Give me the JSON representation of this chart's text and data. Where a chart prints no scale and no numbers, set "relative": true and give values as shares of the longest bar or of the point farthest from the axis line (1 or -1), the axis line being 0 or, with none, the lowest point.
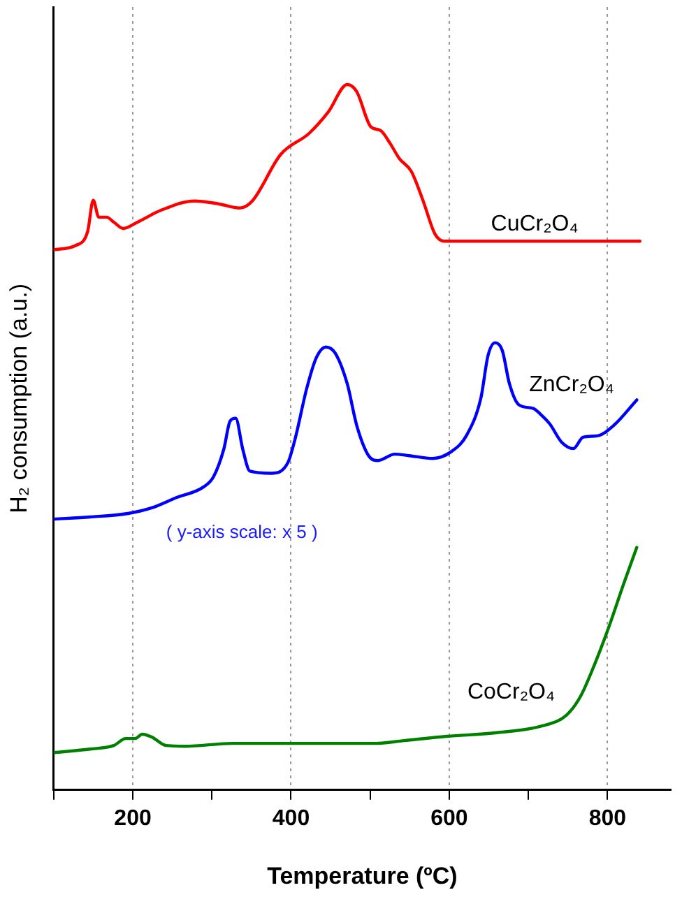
{
  "chart_data": {
    "type": "line",
    "relative": true,
    "xlabel": "Temperature (ºC)",
    "ylabel": "H₂ consumption (a.u.)",
    "xlim": [
      100,
      880
    ],
    "xticks": [
      {
        "value": 100,
        "label": null
      },
      200,
      {
        "value": 300,
        "label": null
      },
      400,
      {
        "value": 500,
        "label": null
      },
      600,
      {
        "value": 700,
        "label": null
      },
      800
    ],
    "grid": "x",
    "legend": false,
    "marker": "none",
    "line_style": "solid",
    "tick_labels": "x",
    "annotations": [
      "( y-axis scale: x 5 )"
    ],
    "series": [
      {
        "name": "CuCr₂O₄",
        "color": "#ff0000",
        "x": [
          100,
          128,
          143,
          150,
          157,
          167,
          176,
          188,
          206,
          236,
          278,
          308,
          335,
          351,
          387,
          423,
          447,
          471,
          483,
          501,
          513,
          525,
          537,
          552,
          567,
          582,
          594,
          628,
          841
        ],
        "values": [
          0.766,
          0.772,
          0.792,
          0.836,
          0.812,
          0.812,
          0.805,
          0.796,
          0.805,
          0.822,
          0.835,
          0.831,
          0.825,
          0.835,
          0.901,
          0.931,
          0.961,
          1.0,
          0.99,
          0.94,
          0.935,
          0.917,
          0.895,
          0.877,
          0.835,
          0.788,
          0.778,
          0.778,
          0.778
        ]
      },
      {
        "name": "ZnCr₂O₄",
        "color": "#0000ff",
        "x": [
          100,
          146,
          194,
          224,
          254,
          290,
          302,
          315,
          323,
          330,
          339,
          348,
          375,
          396,
          405,
          420,
          432,
          444,
          456,
          471,
          483,
          498,
          510,
          531,
          549,
          579,
          603,
          622,
          640,
          649,
          658,
          667,
          676,
          688,
          706,
          715,
          727,
          742,
          757,
          769,
          787,
          808,
          837
        ],
        "values": [
          0.384,
          0.387,
          0.392,
          0.4,
          0.414,
          0.43,
          0.444,
          0.483,
          0.523,
          0.527,
          0.483,
          0.452,
          0.449,
          0.464,
          0.497,
          0.57,
          0.613,
          0.628,
          0.619,
          0.576,
          0.517,
          0.474,
          0.467,
          0.476,
          0.474,
          0.47,
          0.48,
          0.503,
          0.556,
          0.616,
          0.634,
          0.623,
          0.576,
          0.546,
          0.541,
          0.533,
          0.519,
          0.493,
          0.484,
          0.5,
          0.502,
          0.517,
          0.553
        ]
      },
      {
        "name": "CoCr₂O₄",
        "color": "#008000",
        "x": [
          100,
          146,
          176,
          191,
          203,
          212,
          224,
          242,
          266,
          326,
          387,
          447,
          507,
          543,
          597,
          658,
          718,
          748,
          766,
          784,
          802,
          820,
          837
        ],
        "values": [
          0.053,
          0.058,
          0.063,
          0.073,
          0.073,
          0.079,
          0.075,
          0.063,
          0.062,
          0.066,
          0.066,
          0.066,
          0.066,
          0.07,
          0.076,
          0.081,
          0.091,
          0.106,
          0.133,
          0.179,
          0.232,
          0.291,
          0.344
        ]
      }
    ]
  }
}
